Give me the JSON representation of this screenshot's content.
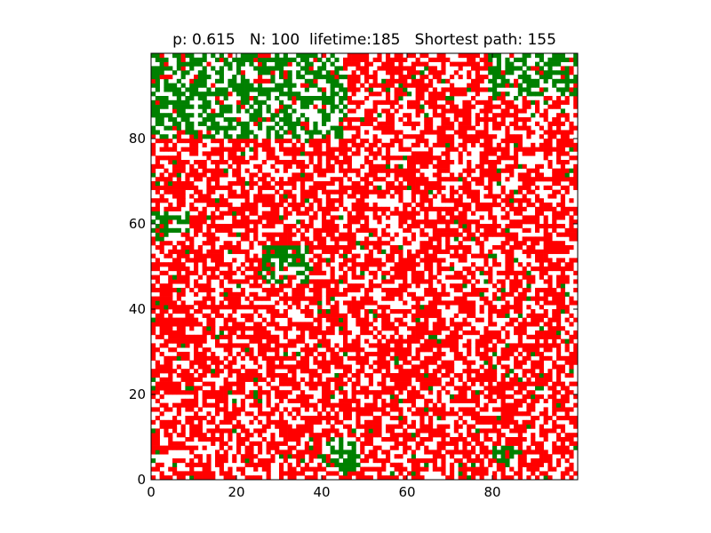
{
  "title": "p: 0.615   N: 100  lifetime:185   Shortest path: 155",
  "chart_data": {
    "type": "heatmap",
    "title": "p: 0.615   N: 100  lifetime:185   Shortest path: 155",
    "params": {
      "p": 0.615,
      "N": 100,
      "lifetime": 185,
      "shortest_path": 155
    },
    "grid_size": [
      100,
      100
    ],
    "states": {
      "empty": "#ffffff",
      "burning": "#ff0000",
      "tree": "#008000"
    },
    "green_regions": [
      {
        "x0": 0,
        "x1": 46,
        "y0": 80,
        "y1": 100
      },
      {
        "x0": 0,
        "x1": 9,
        "y0": 56,
        "y1": 63
      },
      {
        "x0": 26,
        "x1": 37,
        "y0": 46,
        "y1": 55
      },
      {
        "x0": 79,
        "x1": 100,
        "y0": 90,
        "y1": 100
      },
      {
        "x0": 40,
        "x1": 49,
        "y0": 2,
        "y1": 10
      },
      {
        "x0": 80,
        "x1": 86,
        "y0": 3,
        "y1": 8
      }
    ],
    "xlim": [
      0,
      100
    ],
    "ylim": [
      0,
      100
    ],
    "xticks": [
      0,
      20,
      40,
      60,
      80
    ],
    "yticks": [
      0,
      20,
      40,
      60,
      80
    ],
    "xlabel": "",
    "ylabel": "",
    "grid": false,
    "seed": 615
  }
}
